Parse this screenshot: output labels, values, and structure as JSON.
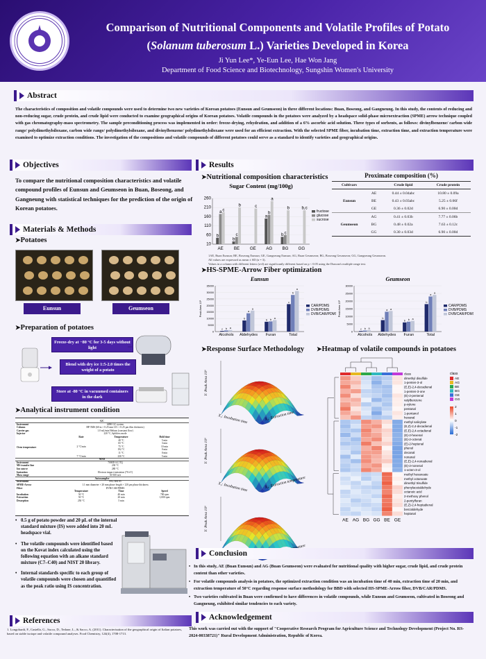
{
  "header": {
    "title_line1": "Comparison of Nutritional Components and Volatile Profiles of Potato",
    "title_line2_open": "(",
    "title_species": "Solanum tuberosum",
    "title_line2_rest": " L.) Varieties Developed in Korea",
    "authors": "Ji Yun Lee*, Ye-Eun Lee, Hae Won Jang",
    "department": "Department of Food Science and Biotechnology, Sungshin Women's University",
    "logo_text": "SUNGSHIN WOMEN'S UNIVERSITY"
  },
  "abstract": {
    "heading": "Abstract",
    "text": "The characteristics of composition and volatile compounds were used to determine two new varieties of Korean potatoes (Eunsun and Geumseon) in three different locations: Buan, Boseong, and Gangneung. In this study, the contents of reducing and non-reducing sugar, crude protein, and crude lipid were conducted to examine geographical origins of Korean potatoes. Volatile compounds in the potatoes were analyzed by a headspace solid-phase microextraction (SPME) arrow technique coupled with gas chromatography-mass spectrometry. The sample preconditioning process was implemented in order: freeze-drying, rehydration, and addition of a 6% ascorbic acid solution. Three types of sorbents, as follows: divinylbenzene/ carbon wide range/ polydimethylsiloxane, carbon wide range/ polydimethylsiloxane, and divinylbenzene/ polydimethylsiloxane were used for an efficient extraction. With the selected SPME fiber, incubation time, extraction time, and extraction temperature were examined to optimize extraction conditions. The investigation of the compositions and volatile compounds of different potatoes could serve as a standard to identify varieties and geographical origins."
  },
  "objectives": {
    "heading": "Objectives",
    "text": "To compare the nutritional composition characteristics and volatile compound profiles of Eunsun and Geumseon in Buan, Boseong, and Gangneung with statistical techniques for the prediction of the origin of Korean potatoes."
  },
  "methods": {
    "heading": "Materials & Methods",
    "potatoes_heading": "Potatoes",
    "variety1": "Eunsun",
    "variety2": "Geumseon",
    "prep_heading": "Preparation of potatoes",
    "step1": "Freeze-dry at −80 °C for 3-5 days without light",
    "step2": "Blend with dry ice 1:5-2.0 times the weight of a potato",
    "step3": "Store at -80 °C in vacuumed containers in the dark",
    "instrument_heading": "Analytical instrument condition",
    "table_gc_title": "GC",
    "table_rows": [
      [
        "Instrument",
        "6890 GC system"
      ],
      [
        "Column",
        "HP-5MS (60 m × 0.25 mm I.D. × 0.25 μm film thickness)"
      ],
      [
        "Carrier gas",
        "1.0 mL/min Helium (constant flow)"
      ],
      [
        "Injector",
        "220 °C, Splitless mode"
      ]
    ],
    "oven_label": "Oven temperature",
    "oven_cols": [
      "Rate",
      "Temperature",
      "Hold time"
    ],
    "oven_rows": [
      [
        "",
        "40 °C",
        "5 min"
      ],
      [
        "",
        "65 °C",
        "3 min"
      ],
      [
        "2 °C/min",
        "75 °C",
        "10 min"
      ],
      [
        "",
        "192 °C",
        "0 min"
      ],
      [
        "",
        "11 °C",
        "0 min"
      ],
      [
        "7 °C/min",
        "230 °C",
        "5 min"
      ]
    ],
    "ms_title": "MSD",
    "ms_rows": [
      [
        "Instrument",
        "7000D GC/TQ"
      ],
      [
        "MS transfer line",
        "230 °C"
      ],
      [
        "Ion source",
        "280 °C"
      ],
      [
        "Ionization",
        "Electron impact ionization (70 eV)"
      ],
      [
        "Mass range",
        "30-300 m/z"
      ]
    ],
    "auto_title": "Autosampler",
    "auto_rows": [
      [
        "Instrument",
        "PAL RSI 85"
      ],
      [
        "SPME-Arrow",
        "1.1 mm diameter × 20 mm phase length × 120 μm phase thickness"
      ],
      [
        "Fiber",
        "DVB/CAR/PDMS"
      ]
    ],
    "incub_cols": [
      "Temperature",
      "Time",
      "Speed"
    ],
    "incub_rows": [
      [
        "Incubation",
        "50 °C",
        "40 min",
        "700 rpm"
      ],
      [
        "Extraction",
        "50 °C",
        "20 min",
        "1,000 rpm"
      ],
      [
        "Desorption",
        "250 °C",
        "5 min",
        ""
      ]
    ],
    "bullet1": "0.5 g of potato powder and 20 μL of the internal standard mixture (IS) were added into 20 mL headspace vial.",
    "bullet2": "The volatile compounds were identified based on the Kovat index calculated using the following equation with an alkane standard mixture (C7–C40) and NIST 20 library.",
    "bullet3": "Internal standards specific to each group of volatile compounds were chosen and quantified as the peak ratio using IS concentration."
  },
  "references": {
    "heading": "References",
    "text": "1.  Longobardi, F., Casiello, G., Sacco, D., Tedone, L., & Sacco, A. (2011). Characterisation of the geographical origin of Italian potatoes, based on stable isotope and volatile compound analyses. Food Chemistry, 124(4), 1708-1713."
  },
  "results": {
    "heading": "Results",
    "nutri_heading": "Nutritional composition characteristics",
    "sugar_title": "Sugar Content (mg/100g)",
    "proximate_title": "Proximate composition (%)",
    "prox_cols": [
      "Cultivars",
      "",
      "Crude lipid",
      "Crude protein"
    ],
    "prox_rows": [
      [
        "",
        "AE",
        "0.44 ± 0.04abc",
        "10.80 ± 0.09a"
      ],
      [
        "Eunsun",
        "BE",
        "0.43 ± 0.03abc",
        "5.25 ± 0.06f"
      ],
      [
        "",
        "GE",
        "0.36 ± 0.02d",
        "6.90 ± 0.00d"
      ],
      [
        "",
        "AG",
        "0.41 ± 0.03b",
        "7.77 ± 0.06b"
      ],
      [
        "Geumseon",
        "BG",
        "0.48 ± 0.02a",
        "7.63 ± 0.12c"
      ],
      [
        "",
        "GG",
        "0.30 ± 0.03d",
        "6.90 ± 0.00d"
      ]
    ],
    "footnote1": "1AE, Buan Eunsun; BE, Boseong Eunsun; GE, Gangneung Eunsun; AG, Buan Geumseon; BG, Boseong Geumseon; GG, Gangneung Geumseon.",
    "footnote2": "All values are expressed as mean ± SD (n = 3).",
    "footnote3": "Values in a column with different letters (a-d) are significantly different based on  p < 0.05 using the Duncan's multiple range test.",
    "spme_heading": "HS-SPME-Arrow Fiber optimization",
    "rsm_heading": "Response Surface Methodology",
    "heatmap_heading": "Heatmap of volatile compounds in potatoes"
  },
  "chart_data": [
    {
      "type": "bar",
      "title": "Sugar Content (mg/100g)",
      "categories": [
        "AE",
        "BE",
        "GE",
        "AG",
        "BG",
        "GG"
      ],
      "ylim": [
        10,
        260
      ],
      "yticks": [
        10,
        60,
        110,
        160,
        210,
        260
      ],
      "series": [
        {
          "name": "fructose",
          "color": "#555555",
          "values": [
            45,
            25,
            0,
            150,
            50,
            0
          ]
        },
        {
          "name": "glucose",
          "color": "#8a8a8a",
          "values": [
            175,
            50,
            0,
            170,
            60,
            0
          ]
        },
        {
          "name": "sucrose",
          "color": "#c8c8c8",
          "values": [
            185,
            210,
            205,
            245,
            195,
            195
          ]
        }
      ],
      "labels": [
        [
          "b",
          "b",
          "",
          "a",
          "b",
          ""
        ],
        [
          "a",
          "c",
          "",
          "b",
          "c",
          ""
        ],
        [
          "c",
          "b",
          "c",
          "a",
          "b",
          "b,c"
        ]
      ],
      "legend": "right"
    },
    {
      "type": "bar",
      "title": "Eunsun",
      "ylabel": "Peak Area 10⁶",
      "categories": [
        "Alcohols",
        "Aldehydes",
        "Furan",
        "Total"
      ],
      "ylim": [
        0,
        35000
      ],
      "yticks": [
        0,
        5000,
        10000,
        15000,
        20000,
        25000,
        30000,
        35000
      ],
      "series": [
        {
          "name": "CAR/PDMS",
          "color": "#1f2a6b",
          "values": [
            500,
            8500,
            7500,
            21000
          ]
        },
        {
          "name": "DVB/PDMS",
          "color": "#6f7fb8",
          "values": [
            900,
            14000,
            7800,
            28000
          ]
        },
        {
          "name": "DVB/CAR/PDMS",
          "color": "#c0c6d8",
          "values": [
            1200,
            16000,
            8800,
            31000
          ]
        }
      ],
      "labels": [
        [
          "c",
          "b",
          "b",
          "c"
        ],
        [
          "b",
          "a",
          "b",
          "b"
        ],
        [
          "a",
          "a",
          "a",
          "a"
        ]
      ],
      "legend": "right"
    },
    {
      "type": "bar",
      "title": "Geumseon",
      "ylabel": "Peak Area 10⁶",
      "categories": [
        "Alcohols",
        "Aldehydes",
        "Furan",
        "Total"
      ],
      "ylim": [
        0,
        30000
      ],
      "yticks": [
        0,
        5000,
        10000,
        15000,
        20000,
        25000,
        30000
      ],
      "series": [
        {
          "name": "CAR/PDMS",
          "color": "#1f2a6b",
          "values": [
            400,
            7500,
            6000,
            18000
          ]
        },
        {
          "name": "DVB/PDMS",
          "color": "#6f7fb8",
          "values": [
            700,
            13000,
            6500,
            23000
          ]
        },
        {
          "name": "DVB/CAR/PDMS",
          "color": "#c0c6d8",
          "values": [
            1000,
            13500,
            7000,
            24000
          ]
        }
      ],
      "labels": [
        [
          "c",
          "b",
          "b",
          "b"
        ],
        [
          "b",
          "a",
          "b",
          "a"
        ],
        [
          "a",
          "a",
          "a",
          "a"
        ]
      ],
      "legend": "right"
    },
    {
      "type": "heatmap",
      "title": "Heatmap of volatile compounds in potatoes",
      "columns": [
        "AE",
        "AG",
        "BG",
        "GG",
        "BE",
        "GE"
      ],
      "legend_title": "class",
      "legend_classes": [
        "AE",
        "AG",
        "BE",
        "BG",
        "GE",
        "GG"
      ],
      "scale": [
        -2,
        -1,
        0,
        1,
        2
      ],
      "rows": [
        {
          "name": "dimethyl disulfide",
          "values": [
            1.2,
            0.6,
            -0.5,
            -0.9,
            -0.7,
            0.3
          ]
        },
        {
          "name": "1-penten-3-ol",
          "values": [
            1.0,
            0.8,
            -0.4,
            -1.1,
            -0.6,
            0.3
          ]
        },
        {
          "name": "(E,E)-2,4-decadienal",
          "values": [
            1.4,
            0.5,
            -0.3,
            -0.8,
            -0.9,
            0.1
          ]
        },
        {
          "name": "1-penten-3-one",
          "values": [
            0.9,
            1.1,
            -0.6,
            -0.7,
            -0.8,
            0.1
          ]
        },
        {
          "name": "(E)-2-pentenal",
          "values": [
            1.3,
            0.4,
            -0.5,
            -0.6,
            -0.9,
            0.3
          ]
        },
        {
          "name": "valylbenzene",
          "values": [
            0.8,
            0.9,
            -0.2,
            -1.0,
            -0.7,
            0.2
          ]
        },
        {
          "name": "p-xylene",
          "values": [
            1.1,
            0.7,
            -0.7,
            -0.5,
            -0.8,
            0.2
          ]
        },
        {
          "name": "pentanal",
          "values": [
            1.5,
            0.3,
            -0.4,
            -0.9,
            -0.6,
            0.1
          ]
        },
        {
          "name": "1-pentanol",
          "values": [
            1.0,
            0.6,
            -0.3,
            -1.2,
            -0.4,
            0.3
          ]
        },
        {
          "name": "hexanal",
          "values": [
            0.7,
            1.2,
            -0.6,
            -0.8,
            -0.7,
            0.2
          ]
        },
        {
          "name": "methyl salicylate",
          "values": [
            -0.8,
            -0.6,
            1.3,
            0.9,
            0.4,
            -1.2
          ]
        },
        {
          "name": "(E,Z)-2,4-decadienal",
          "values": [
            -0.9,
            -0.4,
            1.1,
            1.2,
            0.2,
            -1.2
          ]
        },
        {
          "name": "(E,E)-2,4-octadienal",
          "values": [
            -0.7,
            -0.8,
            1.4,
            0.8,
            0.5,
            -1.2
          ]
        },
        {
          "name": "(E)-2-hexenal",
          "values": [
            -1.0,
            -0.5,
            1.2,
            1.0,
            0.4,
            -1.1
          ]
        },
        {
          "name": "(E)-2-octenal",
          "values": [
            -0.6,
            -0.9,
            1.0,
            1.3,
            0.3,
            -1.1
          ]
        },
        {
          "name": "(E)-2-heptenal",
          "values": [
            -0.8,
            -0.7,
            1.5,
            0.7,
            0.5,
            -1.2
          ]
        },
        {
          "name": "phenol",
          "values": [
            -0.5,
            -0.6,
            0.9,
            1.4,
            0.1,
            -1.3
          ]
        },
        {
          "name": "decanal",
          "values": [
            -0.4,
            -0.8,
            1.1,
            1.1,
            0.3,
            -1.3
          ]
        },
        {
          "name": "nonanal",
          "values": [
            -0.9,
            -0.3,
            1.2,
            0.9,
            0.4,
            -1.3
          ]
        },
        {
          "name": "(E,E)-2,4-nonadienal",
          "values": [
            -0.6,
            -0.9,
            1.3,
            0.8,
            0.6,
            -1.2
          ]
        },
        {
          "name": "(E)-2-nonenal",
          "values": [
            -0.7,
            -0.5,
            1.0,
            1.2,
            0.2,
            -1.2
          ]
        },
        {
          "name": "1-octen-3-ol",
          "values": [
            -0.8,
            -0.6,
            1.4,
            1.0,
            0.1,
            -1.1
          ]
        },
        {
          "name": "methyl hexanoate",
          "values": [
            -0.3,
            -0.4,
            -0.6,
            -0.5,
            1.7,
            0.1
          ]
        },
        {
          "name": "methyl octanoate",
          "values": [
            -0.5,
            -0.2,
            -0.7,
            -0.4,
            1.6,
            0.2
          ]
        },
        {
          "name": "dimethyl trisulfide",
          "values": [
            -0.4,
            -0.6,
            -0.3,
            -0.6,
            1.8,
            0.1
          ]
        },
        {
          "name": "phenylacetaldehyde",
          "values": [
            -0.2,
            -0.5,
            -0.6,
            -0.7,
            1.5,
            0.5
          ]
        },
        {
          "name": "octanoic acid",
          "values": [
            -0.6,
            -0.3,
            -0.5,
            -0.4,
            1.4,
            0.4
          ]
        },
        {
          "name": "2-methoxy phenol",
          "values": [
            -0.5,
            -0.4,
            -0.4,
            -0.6,
            1.7,
            0.2
          ]
        },
        {
          "name": "2-pentylfuran",
          "values": [
            -0.3,
            -0.7,
            -0.5,
            -0.3,
            1.5,
            0.3
          ]
        },
        {
          "name": "(E,Z)-2,4-heptadienal",
          "values": [
            -0.4,
            -0.5,
            -0.6,
            -0.5,
            1.6,
            0.4
          ]
        },
        {
          "name": "benzaldehyde",
          "values": [
            -0.6,
            -0.3,
            -0.4,
            -0.6,
            1.8,
            0.1
          ]
        },
        {
          "name": "heptanal",
          "values": [
            -0.5,
            -0.6,
            -0.3,
            -0.4,
            1.4,
            0.4
          ]
        }
      ]
    }
  ],
  "rsm": {
    "plots": [
      {
        "ylabel": "Y: Peak Area 10⁶",
        "x1": "X₁: Incubation time",
        "x2": "X₂: Extraction time"
      },
      {
        "ylabel": "Y: Peak Area 10⁶",
        "x1": "X₁: Incubation time",
        "x2": "X₃: Extraction temperature"
      },
      {
        "ylabel": "Y: Peak Area 10⁶",
        "x1": "X₂: Extraction time",
        "x2": "X₃: Extraction temperature"
      }
    ]
  },
  "conclusion": {
    "heading": "Conclusion",
    "item1": "In this study, AE (Buan Eunsun) and AG (Buan Geumseon) were evaluated for nutritional quality with higher sugar, crude lipid, and crude protein content than other varieties.",
    "item2": "For volatile compounds analysis in potatoes, the optimized extraction condition was an incubation time of 40 min, extraction time of 20 min, and extraction temperature of 50°C regarding response surface methodology for BBD with selected HS-SPME-Arrow fiber, DVB/CAR/PDMS.",
    "item3": "Two varieties cultivated in Buan were confirmed to have differences in volatile compounds, while Eunsun and Geumseon, cultivated in Boseong and Gangneung, exhibited similar tendencies to each variety."
  },
  "acknowledgement": {
    "heading": "Acknowledgement",
    "text": "This work was carried out with the support of \"Cooperative Research Program for Agriculture Science and Technology Development (Project No. RS-2024-00338721)\" Rural Development Administration, Republic of Korea."
  },
  "colors": {
    "header": "#3b1a8c",
    "accent": "#5c36b8",
    "background": "#f4f2fa"
  }
}
